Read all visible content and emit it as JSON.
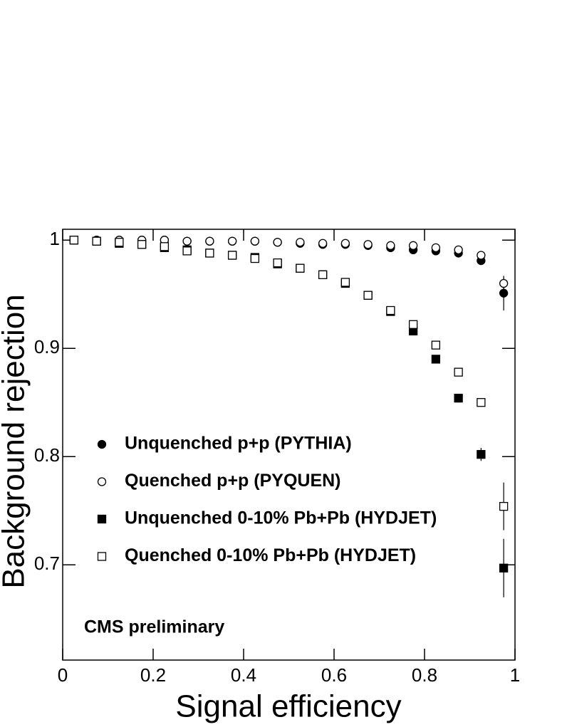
{
  "chart_data": {
    "type": "scatter",
    "x_label": "Signal efficiency",
    "y_label": "Background rejection",
    "annotation": "CMS preliminary",
    "x": [
      0.025,
      0.075,
      0.125,
      0.175,
      0.225,
      0.275,
      0.325,
      0.375,
      0.425,
      0.475,
      0.525,
      0.575,
      0.625,
      0.675,
      0.725,
      0.775,
      0.825,
      0.875,
      0.925,
      0.975
    ],
    "xlim": [
      0,
      1
    ],
    "xticks": [
      0,
      0.2,
      0.4,
      0.6,
      0.8,
      1
    ],
    "ylim": [
      0.612,
      1.01
    ],
    "yticks": [
      0.7,
      0.8,
      0.9,
      1
    ],
    "legend": "left",
    "series": [
      {
        "name": "Unquenched p+p (PYTHIA)",
        "color": "#000000",
        "marker": "circle",
        "filled": true,
        "values": [
          1,
          1,
          1,
          1,
          1,
          0.999,
          0.999,
          0.999,
          0.999,
          0.998,
          0.997,
          0.996,
          0.996,
          0.995,
          0.993,
          0.991,
          0.99,
          0.988,
          0.981,
          0.951
        ],
        "errors": [
          0,
          0,
          0,
          0,
          0,
          0,
          0,
          0,
          0,
          0,
          0,
          0,
          0,
          0,
          0,
          0,
          0.001,
          0.001,
          0.002,
          0.016
        ]
      },
      {
        "name": "Quenched p+p (PYQUEN)",
        "color": "#000000",
        "marker": "circle",
        "filled": false,
        "values": [
          1,
          1,
          1,
          1,
          1,
          0.999,
          0.999,
          0.999,
          0.999,
          0.998,
          0.998,
          0.997,
          0.997,
          0.996,
          0.995,
          0.995,
          0.993,
          0.991,
          0.986,
          0.96
        ],
        "errors": [
          0,
          0,
          0,
          0,
          0,
          0,
          0,
          0,
          0,
          0,
          0,
          0,
          0,
          0,
          0,
          0,
          0.001,
          0.001,
          0.002,
          0.005
        ]
      },
      {
        "name": "Unquenched 0-10% Pb+Pb (HYDJET)",
        "color": "#000000",
        "marker": "square",
        "filled": true,
        "values": [
          1,
          0.999,
          0.997,
          0.996,
          0.993,
          0.991,
          0.988,
          0.986,
          0.984,
          0.978,
          0.974,
          0.968,
          0.96,
          0.949,
          0.934,
          0.916,
          0.89,
          0.854,
          0.802,
          0.697
        ],
        "errors": [
          0,
          0,
          0,
          0,
          0,
          0,
          0,
          0,
          0,
          0,
          0,
          0,
          0.001,
          0.001,
          0.002,
          0.002,
          0.003,
          0.004,
          0.006,
          0.027
        ]
      },
      {
        "name": "Quenched 0-10% Pb+Pb (HYDJET)",
        "color": "#000000",
        "marker": "square",
        "filled": false,
        "values": [
          1,
          0.999,
          0.998,
          0.996,
          0.994,
          0.99,
          0.988,
          0.986,
          0.983,
          0.979,
          0.974,
          0.968,
          0.961,
          0.949,
          0.935,
          0.922,
          0.903,
          0.878,
          0.85,
          0.754
        ],
        "errors": [
          0,
          0,
          0,
          0,
          0,
          0,
          0,
          0,
          0,
          0,
          0,
          0,
          0.001,
          0.001,
          0.002,
          0.002,
          0.003,
          0.003,
          0.004,
          0.022
        ]
      }
    ]
  }
}
